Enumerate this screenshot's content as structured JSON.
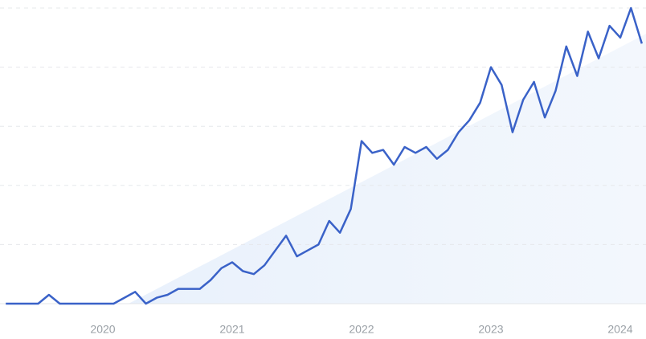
{
  "chart_data": {
    "type": "line",
    "x": [
      2019.25,
      2019.333,
      2019.417,
      2019.5,
      2019.583,
      2019.667,
      2019.75,
      2019.833,
      2019.917,
      2020,
      2020.083,
      2020.167,
      2020.25,
      2020.333,
      2020.417,
      2020.5,
      2020.583,
      2020.667,
      2020.75,
      2020.833,
      2020.917,
      2021,
      2021.083,
      2021.167,
      2021.25,
      2021.333,
      2021.417,
      2021.5,
      2021.583,
      2021.667,
      2021.75,
      2021.833,
      2021.917,
      2022,
      2022.083,
      2022.167,
      2022.25,
      2022.333,
      2022.417,
      2022.5,
      2022.583,
      2022.667,
      2022.75,
      2022.833,
      2022.917,
      2023,
      2023.083,
      2023.167,
      2023.25,
      2023.333,
      2023.417,
      2023.5,
      2023.583,
      2023.667,
      2023.75,
      2023.833,
      2023.917,
      2024,
      2024.083,
      2024.167
    ],
    "series": [
      {
        "color": "#3a62c8",
        "values": [
          0,
          0,
          0,
          0,
          3,
          0,
          0,
          0,
          0,
          0,
          0,
          2,
          4,
          0,
          2,
          3,
          5,
          5,
          5,
          8,
          12,
          14,
          11,
          10,
          13,
          18,
          23,
          16,
          18,
          20,
          28,
          24,
          32,
          55,
          51,
          52,
          47,
          53,
          51,
          53,
          49,
          52,
          58,
          62,
          68,
          80,
          74,
          58,
          69,
          75,
          63,
          72,
          87,
          77,
          92,
          83,
          94,
          90,
          100,
          88
        ]
      }
    ],
    "xlim": [
      2019.205,
      2024.199
    ],
    "xticks": [
      2020,
      2021,
      2022,
      2023,
      2024
    ],
    "ylim": [
      0,
      100
    ],
    "yticks": [
      0,
      20,
      40,
      60,
      80,
      100
    ],
    "grid": true
  }
}
